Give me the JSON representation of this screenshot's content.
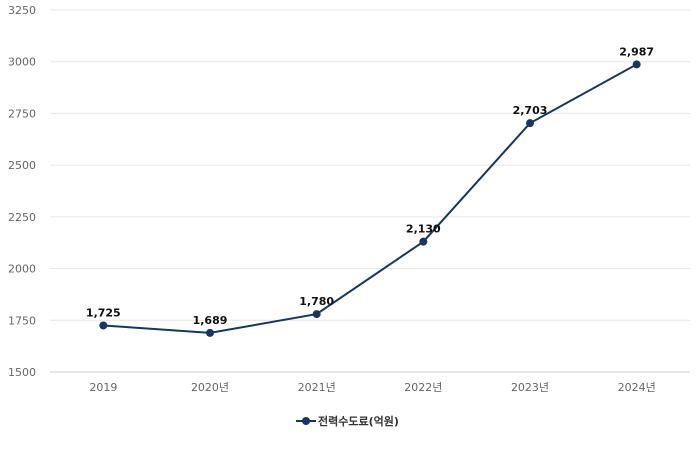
{
  "chart_data": {
    "type": "line",
    "categories": [
      "2019",
      "2020년",
      "2021년",
      "2022년",
      "2023년",
      "2024년"
    ],
    "series": [
      {
        "name": "전력수도료(억원)",
        "values": [
          1725,
          1689,
          1780,
          2130,
          2703,
          2987
        ],
        "labels": [
          "1,725",
          "1,689",
          "1,780",
          "2,130",
          "2,703",
          "2,987"
        ],
        "color": "#17375e"
      }
    ],
    "yticks": [
      "1500",
      "1750",
      "2000",
      "2250",
      "2500",
      "2750",
      "3000",
      "3250"
    ],
    "ylim": [
      1500,
      3250
    ],
    "grid": true,
    "legend": "bottom"
  }
}
